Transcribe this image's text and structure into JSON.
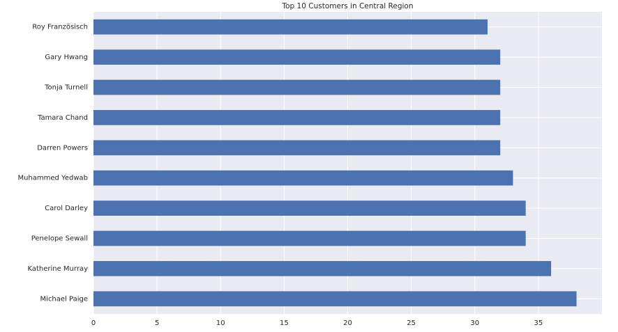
{
  "chart_data": {
    "type": "bar",
    "orientation": "horizontal",
    "title": "Top 10 Customers in Central Region",
    "xlabel": "",
    "ylabel": "",
    "categories": [
      "Michael Paige",
      "Katherine Murray",
      "Penelope Sewall",
      "Carol Darley",
      "Muhammed Yedwab",
      "Darren Powers",
      "Tamara Chand",
      "Tonja Turnell",
      "Gary Hwang",
      "Roy Französisch"
    ],
    "values": [
      38,
      36,
      34,
      34,
      33,
      32,
      32,
      32,
      32,
      31
    ],
    "xlim": [
      0,
      40
    ],
    "xticks": [
      0,
      5,
      10,
      15,
      20,
      25,
      30,
      35
    ],
    "grid": true,
    "colors": {
      "bar": "#4c72b0",
      "plot_background": "#eaeaf2",
      "grid": "#ffffff"
    }
  }
}
